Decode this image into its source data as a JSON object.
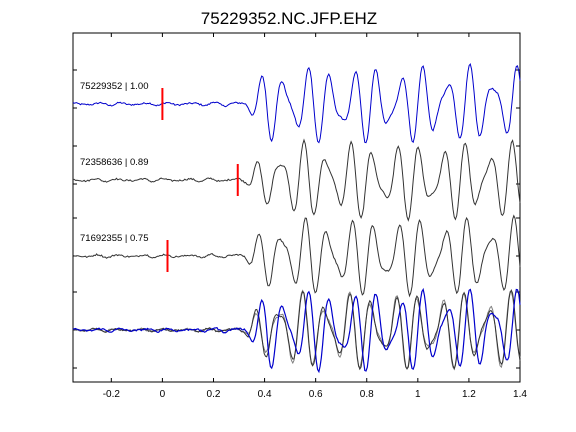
{
  "chart_data": {
    "type": "line",
    "title": "75229352.NC.JFP.EHZ",
    "xlabel": "",
    "ylabel": "",
    "xlim": [
      -0.35,
      1.4
    ],
    "xticks": [
      -0.2,
      0,
      0.2,
      0.4,
      0.6,
      0.8,
      1,
      1.2,
      1.4
    ],
    "xtick_labels": [
      "-0.2",
      "0",
      "0.2",
      "0.4",
      "0.6",
      "0.8",
      "1",
      "1.2",
      "1.4"
    ],
    "grid": false,
    "legend": "none",
    "colors": {
      "reference": "#0000cc",
      "neighbor": "#333333",
      "neighbor_overlay": "#7f7f7f",
      "pick": "#ff0000",
      "axes": "#000000"
    },
    "traces": [
      {
        "id": "trace-1",
        "label": "75229352 | 1.00",
        "event": "75229352",
        "correlation": 1.0,
        "pick_time": 0.0,
        "color": "reference"
      },
      {
        "id": "trace-2",
        "label": "72358636 | 0.89",
        "event": "72358636",
        "correlation": 0.89,
        "pick_time": 0.295,
        "color": "neighbor"
      },
      {
        "id": "trace-3",
        "label": "71692355 | 0.75",
        "event": "71692355",
        "correlation": 0.75,
        "pick_time": 0.02,
        "color": "neighbor"
      }
    ],
    "stack": {
      "id": "stack",
      "label": "",
      "members": [
        "trace-1",
        "trace-2",
        "trace-3"
      ]
    }
  }
}
